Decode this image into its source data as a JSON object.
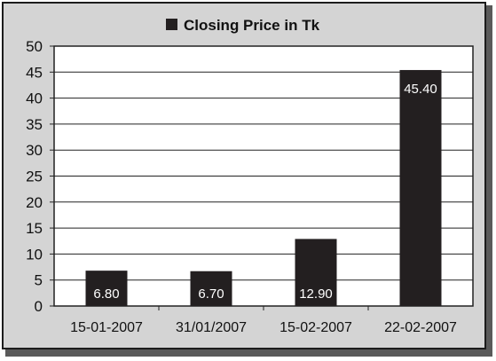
{
  "chart_data": {
    "type": "bar",
    "categories": [
      "15-01-2007",
      "31/01/2007",
      "15-02-2007",
      "22-02-2007"
    ],
    "series": [
      {
        "name": "Closing Price in Tk",
        "values": [
          6.8,
          6.7,
          12.9,
          45.4
        ]
      }
    ],
    "data_labels": [
      "6.80",
      "6.70",
      "12.90",
      "45.40"
    ],
    "ylim": [
      0,
      50
    ],
    "yticks": [
      "0",
      "5",
      "10",
      "15",
      "20",
      "25",
      "30",
      "35",
      "40",
      "45",
      "50"
    ],
    "grid": true,
    "legend_position": "top",
    "colors": {
      "bar": "#231f20",
      "plot_background": "#ffffff",
      "frame_background": "#d4d4d4"
    }
  }
}
